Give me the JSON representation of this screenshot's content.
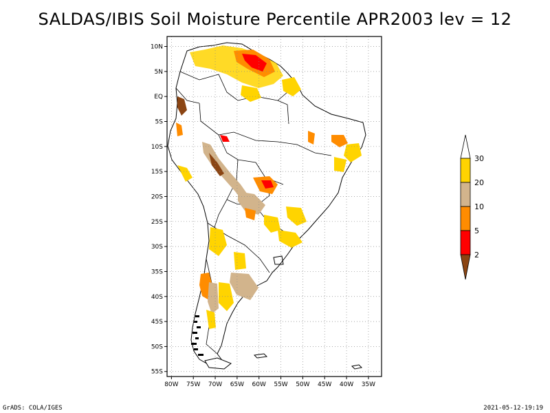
{
  "title": "SALDAS/IBIS Soil Moisture Percentile APR2003 lev = 12",
  "footer_left": "GrADS: COLA/IGES",
  "footer_right": "2021-05-12-19:19",
  "map": {
    "projection": "lat-lon",
    "lon_range": [
      -81,
      -32
    ],
    "lat_range": [
      -56,
      12
    ],
    "grid": "dotted",
    "lat_labels": [
      "10N",
      "5N",
      "EQ",
      "5S",
      "10S",
      "15S",
      "20S",
      "25S",
      "30S",
      "35S",
      "40S",
      "45S",
      "50S",
      "55S"
    ],
    "lat_values": [
      10,
      5,
      0,
      -5,
      -10,
      -15,
      -20,
      -25,
      -30,
      -35,
      -40,
      -45,
      -50,
      -55
    ],
    "lon_labels": [
      "80W",
      "75W",
      "70W",
      "65W",
      "60W",
      "55W",
      "50W",
      "45W",
      "40W",
      "35W"
    ],
    "lon_values": [
      -80,
      -75,
      -70,
      -65,
      -60,
      -55,
      -50,
      -45,
      -40,
      -35
    ]
  },
  "legend": {
    "labels": [
      "30",
      "20",
      "10",
      "5",
      "2"
    ],
    "colors": [
      "#ffffff",
      "#ffd400",
      "#d2b48c",
      "#ff8c00",
      "#ff0000",
      "#8b4513"
    ]
  }
}
